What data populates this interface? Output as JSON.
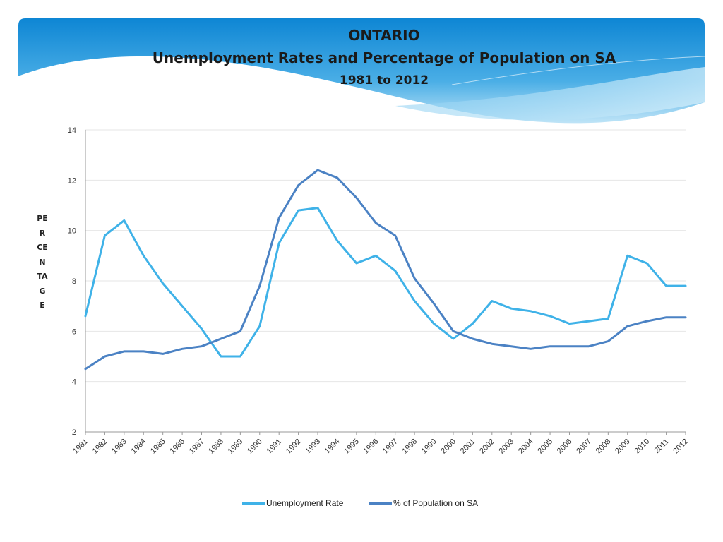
{
  "title": {
    "line1": "ONTARIO",
    "line2": "Unemployment Rates and Percentage of Population on SA",
    "line3": "1981 to 2012"
  },
  "colors": {
    "unemployment": "#3fb2e8",
    "sa": "#4b82c4",
    "grid": "#e6e6e6",
    "axis": "#999999",
    "banner_top": "#0e86d4",
    "banner_light": "#bfe4f7"
  },
  "chart_data": {
    "type": "line",
    "title": "Unemployment Rates and Percentage of Population on SA",
    "xlabel": "",
    "ylabel": "PERCENTAGE",
    "ylim": [
      2,
      14
    ],
    "yticks": [
      2,
      4,
      6,
      8,
      10,
      12,
      14
    ],
    "grid": true,
    "legend": "bottom",
    "x": [
      "1981",
      "1982",
      "1983",
      "1984",
      "1985",
      "1986",
      "1987",
      "1988",
      "1989",
      "1990",
      "1991",
      "1992",
      "1993",
      "1994",
      "1995",
      "1996",
      "1997",
      "1998",
      "1999",
      "2000",
      "2001",
      "2002",
      "2003",
      "2004",
      "2005",
      "2006",
      "2007",
      "2008",
      "2009",
      "2010",
      "2011",
      "2012"
    ],
    "series": [
      {
        "name": "Unemployment Rate",
        "values": [
          6.6,
          9.8,
          10.4,
          9.0,
          7.9,
          7.0,
          6.1,
          5.0,
          5.0,
          6.2,
          9.5,
          10.8,
          10.9,
          9.6,
          8.7,
          9.0,
          8.4,
          7.2,
          6.3,
          5.7,
          6.3,
          7.2,
          6.9,
          6.8,
          6.6,
          6.3,
          6.4,
          6.5,
          9.0,
          8.7,
          7.8,
          7.8
        ]
      },
      {
        "name": "% of Population on SA",
        "values": [
          4.5,
          5.0,
          5.2,
          5.2,
          5.1,
          5.3,
          5.4,
          5.7,
          6.0,
          7.8,
          10.5,
          11.8,
          12.4,
          12.1,
          11.3,
          10.3,
          9.8,
          8.1,
          7.1,
          6.0,
          5.7,
          5.5,
          5.4,
          5.3,
          5.4,
          5.4,
          5.4,
          5.6,
          6.2,
          6.4,
          6.55,
          6.55
        ]
      }
    ]
  }
}
